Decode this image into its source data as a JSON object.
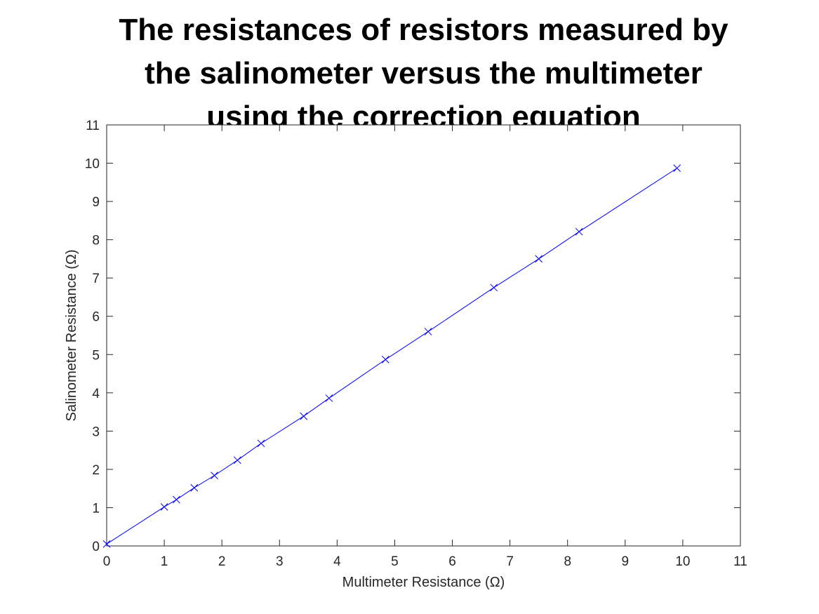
{
  "chart_data": {
    "type": "line",
    "title_lines": [
      "The resistances of resistors measured by",
      "the salinometer versus the multimeter",
      "using the correction equation"
    ],
    "xlabel": "Multimeter Resistance (Ω)",
    "ylabel": "Salinometer Resistance (Ω)",
    "xlim": [
      0,
      11
    ],
    "ylim": [
      0,
      11
    ],
    "xticks": [
      "0",
      "1",
      "2",
      "3",
      "4",
      "5",
      "6",
      "7",
      "8",
      "9",
      "10",
      "11"
    ],
    "yticks": [
      "0",
      "1",
      "2",
      "3",
      "4",
      "5",
      "6",
      "7",
      "8",
      "9",
      "10",
      "11"
    ],
    "grid": false,
    "legend": "none",
    "series": [
      {
        "marker": "x",
        "color": "#0000ff",
        "x": [
          0.0,
          1.0,
          1.21,
          1.52,
          1.87,
          2.27,
          2.68,
          3.42,
          3.86,
          4.84,
          5.58,
          6.72,
          7.5,
          8.2,
          9.9
        ],
        "y": [
          0.05,
          1.02,
          1.21,
          1.52,
          1.84,
          2.24,
          2.68,
          3.39,
          3.86,
          4.87,
          5.6,
          6.75,
          7.5,
          8.21,
          9.87
        ]
      }
    ],
    "colors": {
      "series": "#0000ff",
      "axes": "#262626",
      "background": "#ffffff"
    }
  }
}
